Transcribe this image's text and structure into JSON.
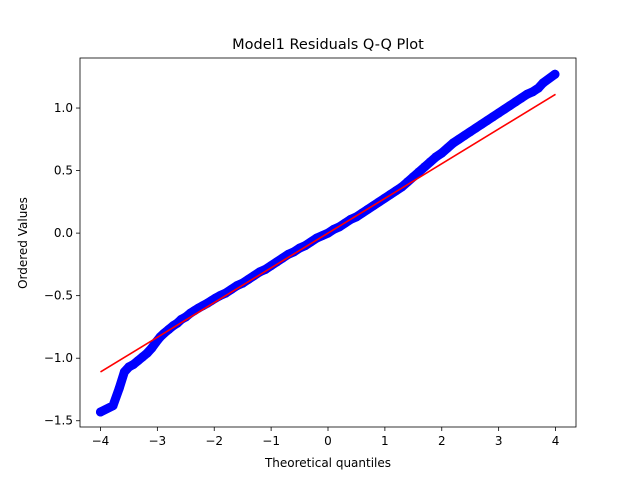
{
  "chart_data": {
    "type": "scatter",
    "title": "Model1 Residuals Q-Q Plot",
    "xlabel": "Theoretical quantiles",
    "ylabel": "Ordered Values",
    "xlim": [
      -4.36,
      4.36
    ],
    "ylim": [
      -1.55,
      1.4
    ],
    "x_ticks": [
      -4,
      -3,
      -2,
      -1,
      0,
      1,
      2,
      3,
      4
    ],
    "x_tick_labels": [
      "−4",
      "−3",
      "−2",
      "−1",
      "0",
      "1",
      "2",
      "3",
      "4"
    ],
    "y_ticks": [
      -1.5,
      -1.0,
      -0.5,
      0.0,
      0.5,
      1.0
    ],
    "y_tick_labels": [
      "−1.5",
      "−1.0",
      "−0.5",
      "0.0",
      "0.5",
      "1.0"
    ],
    "grid": false,
    "series": [
      {
        "kind": "points",
        "color": "#0000ff",
        "x": [
          -4.0,
          -3.78,
          -3.67,
          -3.58,
          -3.5,
          -3.42,
          -3.34,
          -3.26,
          -3.18,
          -3.1,
          -3.02,
          -2.95,
          -2.88,
          -2.8,
          -2.72,
          -2.65,
          -2.58,
          -2.5,
          -2.42,
          -2.35,
          -2.28,
          -2.2,
          -2.12,
          -2.05,
          -1.98,
          -1.9,
          -1.8,
          -1.7,
          -1.6,
          -1.5,
          -1.4,
          -1.3,
          -1.2,
          -1.1,
          -1.0,
          -0.9,
          -0.8,
          -0.7,
          -0.6,
          -0.5,
          -0.4,
          -0.3,
          -0.2,
          -0.1,
          0.0,
          0.1,
          0.2,
          0.3,
          0.4,
          0.5,
          0.6,
          0.7,
          0.8,
          0.9,
          1.0,
          1.1,
          1.2,
          1.3,
          1.4,
          1.5,
          1.6,
          1.7,
          1.8,
          1.9,
          2.0,
          2.1,
          2.2,
          2.3,
          2.4,
          2.5,
          2.6,
          2.7,
          2.8,
          2.9,
          3.0,
          3.1,
          3.2,
          3.3,
          3.4,
          3.5,
          3.6,
          3.7,
          3.78,
          3.99
        ],
        "y": [
          -1.43,
          -1.38,
          -1.24,
          -1.11,
          -1.07,
          -1.05,
          -1.02,
          -0.99,
          -0.96,
          -0.92,
          -0.87,
          -0.83,
          -0.8,
          -0.77,
          -0.74,
          -0.72,
          -0.69,
          -0.67,
          -0.64,
          -0.62,
          -0.6,
          -0.58,
          -0.56,
          -0.54,
          -0.52,
          -0.5,
          -0.48,
          -0.45,
          -0.42,
          -0.4,
          -0.37,
          -0.34,
          -0.31,
          -0.29,
          -0.26,
          -0.23,
          -0.2,
          -0.17,
          -0.15,
          -0.12,
          -0.1,
          -0.07,
          -0.04,
          -0.02,
          0.0,
          0.03,
          0.05,
          0.08,
          0.11,
          0.13,
          0.16,
          0.19,
          0.22,
          0.25,
          0.28,
          0.31,
          0.34,
          0.37,
          0.41,
          0.45,
          0.49,
          0.53,
          0.57,
          0.61,
          0.64,
          0.68,
          0.72,
          0.75,
          0.78,
          0.81,
          0.84,
          0.87,
          0.9,
          0.93,
          0.96,
          0.99,
          1.02,
          1.05,
          1.08,
          1.11,
          1.13,
          1.16,
          1.2,
          1.27
        ]
      },
      {
        "kind": "fit-line",
        "color": "#ff0000",
        "x": [
          -4.0,
          4.0
        ],
        "y": [
          -1.11,
          1.11
        ]
      }
    ]
  }
}
